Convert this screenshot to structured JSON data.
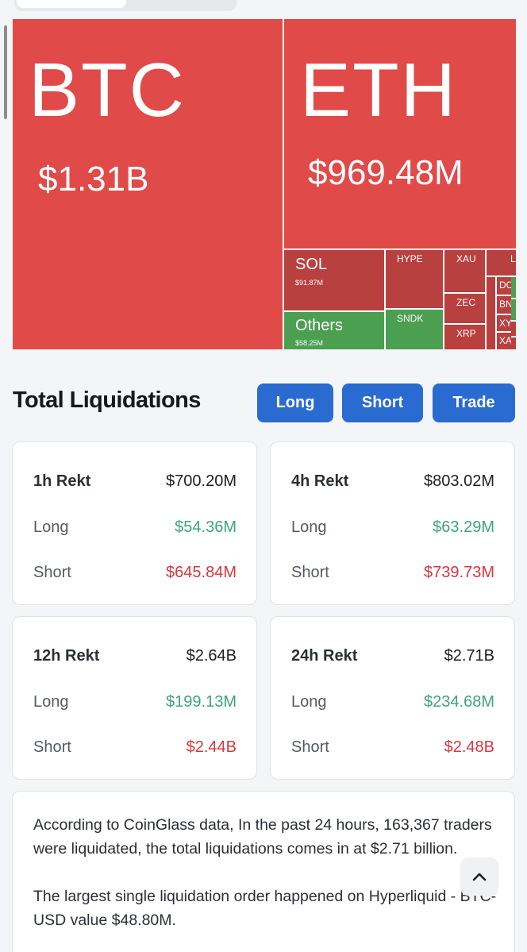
{
  "treemap": {
    "btc": {
      "symbol": "BTC",
      "value": "$1.31B"
    },
    "eth": {
      "symbol": "ETH",
      "value": "$969.48M"
    },
    "sol": {
      "symbol": "SOL",
      "value": "$91.87M"
    },
    "others": {
      "symbol": "Others",
      "value": "$58.25M"
    },
    "hype": {
      "symbol": "HYPE"
    },
    "sndk": {
      "symbol": "SNDK"
    },
    "xau": {
      "symbol": "XAU"
    },
    "zec": {
      "symbol": "ZEC"
    },
    "xrp": {
      "symbol": "XRP"
    },
    "t_l": {
      "symbol": "LI"
    },
    "t_do": {
      "symbol": "DO"
    },
    "t_bn": {
      "symbol": "BN"
    },
    "t_xy": {
      "symbol": "XY"
    },
    "t_xa": {
      "symbol": "XA"
    },
    "colors": {
      "red": "#e04a48",
      "dark_red": "#b8403f",
      "green": "#4b9f50"
    }
  },
  "liquidations": {
    "title": "Total Liquidations",
    "buttons": {
      "long": "Long",
      "short": "Short",
      "trade": "Trade"
    },
    "cards": [
      {
        "period": "1h Rekt",
        "total": "$700.20M",
        "long_label": "Long",
        "long": "$54.36M",
        "short_label": "Short",
        "short": "$645.84M"
      },
      {
        "period": "4h Rekt",
        "total": "$803.02M",
        "long_label": "Long",
        "long": "$63.29M",
        "short_label": "Short",
        "short": "$739.73M"
      },
      {
        "period": "12h Rekt",
        "total": "$2.64B",
        "long_label": "Long",
        "long": "$199.13M",
        "short_label": "Short",
        "short": "$2.44B"
      },
      {
        "period": "24h Rekt",
        "total": "$2.71B",
        "long_label": "Long",
        "long": "$234.68M",
        "short_label": "Short",
        "short": "$2.48B"
      }
    ]
  },
  "summary": {
    "p1": "According to CoinGlass data, In the past 24 hours, 163,367 traders were liquidated, the total liquidations comes in at $2.71 billion.",
    "p2": "The largest single liquidation order happened on Hyperliquid - BTC-USD value $48.80M."
  },
  "icons": {
    "to_top": "chevron-up-icon"
  }
}
